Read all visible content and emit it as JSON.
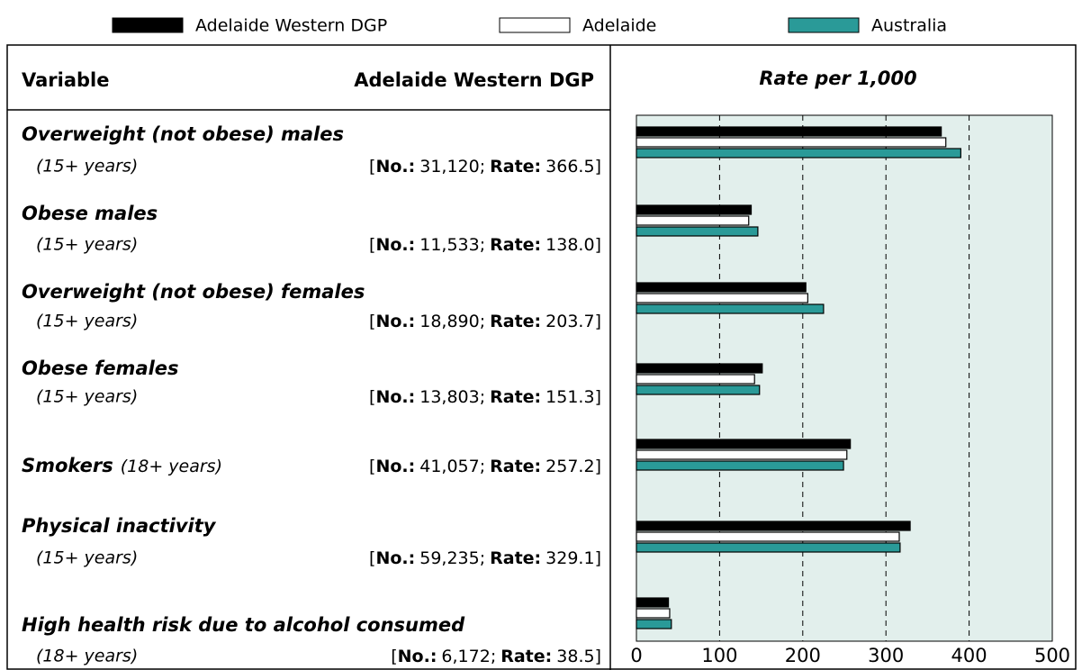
{
  "legend": [
    "Adelaide Western DGP",
    "Adelaide",
    "Australia"
  ],
  "table": {
    "header": [
      "Variable",
      "Adelaide Western DGP"
    ],
    "open": "[",
    "number_label": "No.:",
    "separator": ";",
    "rate_label": "Rate:",
    "close": "]",
    "rows": [
      {
        "variable": "Overweight (not obese) males",
        "age": "(15+ years)",
        "number": "31,120"
      },
      {
        "variable": "Obese males",
        "age": "(15+ years)",
        "number": "11,533"
      },
      {
        "variable": "Overweight (not obese) females",
        "age": "(15+ years)",
        "number": "18,890"
      },
      {
        "variable": "Obese females",
        "age": "(15+ years)",
        "number": "13,803"
      },
      {
        "variable": "Smokers",
        "age": "(18+ years)",
        "number": "41,057"
      },
      {
        "variable": "Physical inactivity",
        "age": "(15+ years)",
        "number": "59,235"
      },
      {
        "variable": "High health risk due to alcohol consumed",
        "age": "(18+ years)",
        "number": "6,172"
      }
    ]
  },
  "chart_data": {
    "type": "hbar",
    "title": "Rate per 1,000",
    "series": [
      {
        "name": "Adelaide Western DGP",
        "color": "#000000",
        "values": [
          366.5,
          138,
          203.7,
          151.3,
          257.2,
          329.1,
          38.5
        ],
        "value_labels": [
          "366.5",
          "138.0",
          "203.7",
          "151.3",
          "257.2",
          "329.1",
          "38.5"
        ]
      },
      {
        "name": "Adelaide",
        "color": "#ffffff",
        "values": [
          372,
          135,
          206,
          142,
          253,
          316,
          40
        ]
      },
      {
        "name": "Australia",
        "color": "#2a9a98",
        "values": [
          390,
          146,
          225,
          148,
          249,
          317,
          42
        ]
      }
    ],
    "xlim": [
      0,
      500
    ],
    "xticks": [
      0,
      100,
      200,
      300,
      400,
      500
    ],
    "grid": true
  }
}
